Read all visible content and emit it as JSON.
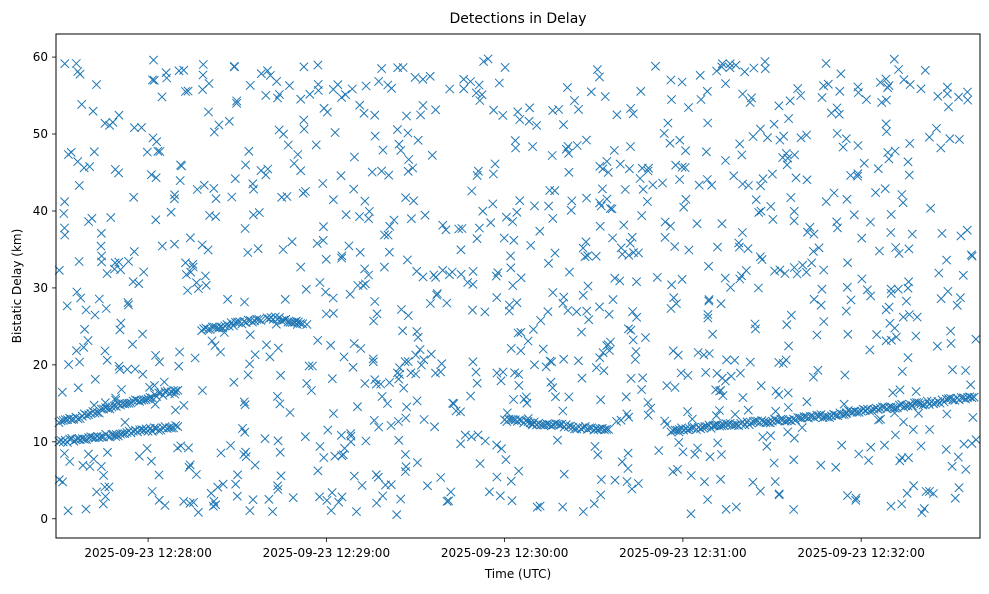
{
  "chart_data": {
    "type": "scatter",
    "title": "Detections in Delay",
    "xlabel": "Time (UTC)",
    "ylabel": "Bistatic Delay (km)",
    "x_start": "2025-09-23 12:27:29",
    "x_end": "2025-09-23 12:32:40",
    "x_ticks": [
      "2025-09-23 12:28:00",
      "2025-09-23 12:29:00",
      "2025-09-23 12:30:00",
      "2025-09-23 12:31:00",
      "2025-09-23 12:32:00"
    ],
    "ylim": [
      -2.5,
      63
    ],
    "y_ticks": [
      0,
      10,
      20,
      30,
      40,
      50,
      60
    ],
    "grid": false,
    "marker": "x",
    "marker_color": "#1f77b4",
    "noise_points": {
      "count": 1100,
      "y_range": [
        0.5,
        60
      ]
    },
    "tracks": [
      {
        "x_start": "2025-09-23 12:27:30",
        "x_end": "2025-09-23 12:28:10",
        "y_start": 12.5,
        "y_end": 16.8
      },
      {
        "x_start": "2025-09-23 12:27:30",
        "x_end": "2025-09-23 12:28:10",
        "y_start": 10.0,
        "y_end": 12.0
      },
      {
        "x_start": "2025-09-23 12:28:18",
        "x_end": "2025-09-23 12:28:38",
        "y_start": 24.5,
        "y_end": 26.0
      },
      {
        "x_start": "2025-09-23 12:28:40",
        "x_end": "2025-09-23 12:28:52",
        "y_start": 26.2,
        "y_end": 25.5
      },
      {
        "x_start": "2025-09-23 12:30:00",
        "x_end": "2025-09-23 12:30:35",
        "y_start": 12.8,
        "y_end": 11.5
      },
      {
        "x_start": "2025-09-23 12:30:56",
        "x_end": "2025-09-23 12:31:55",
        "y_start": 11.5,
        "y_end": 13.6
      },
      {
        "x_start": "2025-09-23 12:31:55",
        "x_end": "2025-09-23 12:32:38",
        "y_start": 13.8,
        "y_end": 15.8
      }
    ]
  }
}
